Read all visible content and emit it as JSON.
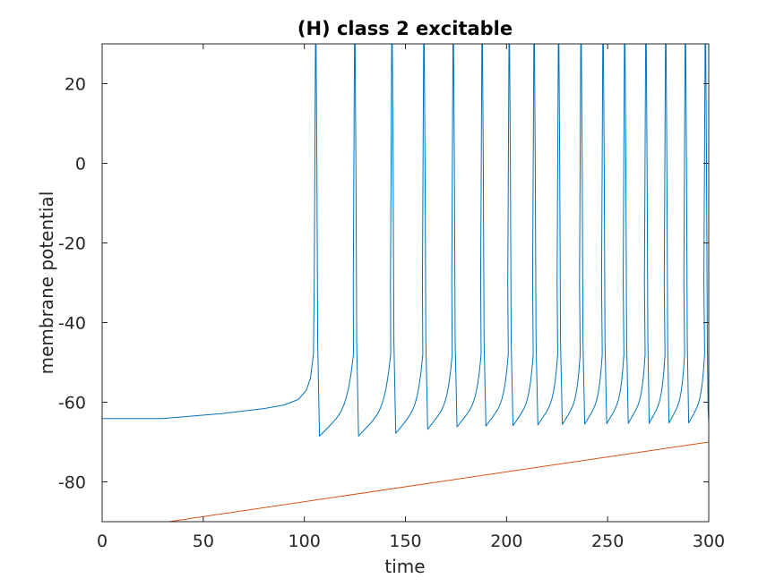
{
  "chart_data": {
    "type": "line",
    "title": "(H) class 2 excitable",
    "xlabel": "time",
    "ylabel": "membrane potential",
    "xlim": [
      0,
      300
    ],
    "ylim": [
      -90,
      30
    ],
    "xticks": [
      0,
      50,
      100,
      150,
      200,
      250,
      300
    ],
    "yticks": [
      -80,
      -60,
      -40,
      -20,
      0,
      20
    ],
    "grid": false,
    "legend": "none",
    "series": [
      {
        "color": "#0072BD",
        "kind": "membrane-potential",
        "baseline_points": [
          [
            0,
            -64.1
          ],
          [
            30,
            -64.1
          ],
          [
            60,
            -62.8
          ],
          [
            80,
            -61.6
          ],
          [
            90,
            -60.7
          ],
          [
            97,
            -59.3
          ],
          [
            101,
            -57.0
          ],
          [
            103,
            -54.0
          ],
          [
            104.5,
            -48.0
          ]
        ],
        "spike_peak": 30,
        "spike_times": [
          105.5,
          124.8,
          143.2,
          159.0,
          173.5,
          187.8,
          201.2,
          213.5,
          225.6,
          236.7,
          247.6,
          258.3,
          268.8,
          278.6,
          288.3,
          298.2
        ],
        "trough_values": [
          -68.5,
          -68.5,
          -67.8,
          -66.8,
          -66.2,
          -66.0,
          -65.9,
          -65.7,
          -65.6,
          -65.5,
          -65.4,
          -65.3,
          -65.3,
          -65.2,
          -65.2,
          -65.2
        ],
        "end_point": [
          300,
          -65
        ]
      },
      {
        "color": "#D95319",
        "kind": "input-ramp",
        "points": [
          [
            0,
            -90
          ],
          [
            33,
            -90
          ],
          [
            300,
            -70
          ]
        ]
      },
      {
        "color": "#EDB120",
        "kind": "input-ramp-overlap",
        "points": [
          [
            0,
            -90
          ],
          [
            300,
            -90
          ]
        ]
      }
    ]
  }
}
